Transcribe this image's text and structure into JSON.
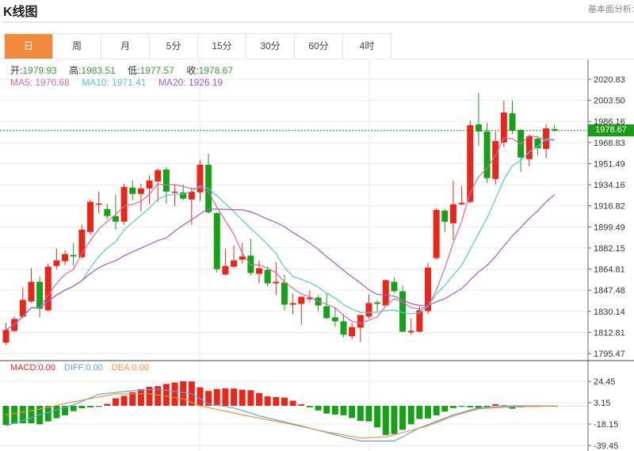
{
  "header": {
    "title": "K线图",
    "top_right_link": "基本面分析:"
  },
  "tabs": [
    {
      "label": "日",
      "active": true
    },
    {
      "label": "周"
    },
    {
      "label": "月"
    },
    {
      "label": "5分"
    },
    {
      "label": "15分"
    },
    {
      "label": "30分"
    },
    {
      "label": "60分"
    },
    {
      "label": "4时"
    }
  ],
  "ohlc_info": {
    "open_label": "开:",
    "open": "1979.93",
    "high_label": "高:",
    "high": "1983.51",
    "low_label": "低:",
    "low": "1977.57",
    "close_label": "收:",
    "close": "1978.67"
  },
  "ma_info": {
    "ma5": "MA5: 1970.68",
    "ma10": "MA10: 1971.41",
    "ma20": "MA20: 1926.19"
  },
  "macd_info": {
    "macd": "MACD:0.00",
    "diff": "DIFF:0.00",
    "dea": "DEA:0.00"
  },
  "current_price": "1978.67",
  "colors": {
    "up": "#e8261c",
    "down": "#19a019",
    "ma5": "#d96b98",
    "ma10": "#5cc3d8",
    "ma20": "#a35cc6",
    "tab_active": "#f28a3d",
    "diff": "#5aa6e0",
    "dea": "#f0923e"
  },
  "chart_data": {
    "type": "candlestick",
    "price_axis": {
      "ticks": [
        "2020.83",
        "2003.50",
        "1986.16",
        "1968.83",
        "1951.49",
        "1934.16",
        "1916.82",
        "1899.49",
        "1882.15",
        "1864.81",
        "1847.48",
        "1830.14",
        "1812.81",
        "1795.47"
      ],
      "range": [
        1795.47,
        2020.83
      ]
    },
    "macd_axis": {
      "ticks": [
        "24.45",
        "3.15",
        "-18.15",
        "-39.45"
      ],
      "range": [
        -39.45,
        24.45
      ]
    },
    "candles": [
      [
        1804.4,
        1820.6,
        1802.4,
        1814.8
      ],
      [
        1814.1,
        1825.8,
        1812.8,
        1823.9
      ],
      [
        1825.8,
        1849.9,
        1824.5,
        1839.5
      ],
      [
        1838.2,
        1865.5,
        1836.9,
        1854.4
      ],
      [
        1854.4,
        1859.0,
        1825.2,
        1832.3
      ],
      [
        1831.0,
        1869.4,
        1829.7,
        1866.8
      ],
      [
        1867.4,
        1881.7,
        1864.8,
        1872.0
      ],
      [
        1871.3,
        1880.4,
        1868.1,
        1877.2
      ],
      [
        1876.5,
        1886.2,
        1867.4,
        1875.2
      ],
      [
        1874.6,
        1901.2,
        1873.3,
        1897.3
      ],
      [
        1895.3,
        1922.0,
        1892.7,
        1920.1
      ],
      [
        1918.1,
        1928.5,
        1910.9,
        1918.7
      ],
      [
        1914.2,
        1918.7,
        1905.7,
        1908.4
      ],
      [
        1908.4,
        1925.9,
        1897.3,
        1903.8
      ],
      [
        1903.8,
        1935.0,
        1901.2,
        1932.4
      ],
      [
        1931.8,
        1937.6,
        1921.4,
        1926.6
      ],
      [
        1926.6,
        1935.0,
        1912.3,
        1931.1
      ],
      [
        1931.1,
        1942.2,
        1918.1,
        1937.6
      ],
      [
        1936.9,
        1947.4,
        1920.1,
        1946.1
      ],
      [
        1946.7,
        1948.7,
        1918.7,
        1928.5
      ],
      [
        1927.9,
        1934.4,
        1916.8,
        1928.5
      ],
      [
        1927.9,
        1934.4,
        1921.4,
        1922.7
      ],
      [
        1922.0,
        1931.8,
        1901.2,
        1928.5
      ],
      [
        1927.9,
        1954.5,
        1920.7,
        1950.6
      ],
      [
        1950.6,
        1959.7,
        1910.3,
        1911.6
      ],
      [
        1910.9,
        1911.6,
        1862.2,
        1864.8
      ],
      [
        1860.3,
        1881.7,
        1859.6,
        1867.4
      ],
      [
        1866.8,
        1884.3,
        1865.5,
        1872.0
      ],
      [
        1872.6,
        1886.2,
        1869.4,
        1875.2
      ],
      [
        1875.9,
        1890.1,
        1859.6,
        1861.6
      ],
      [
        1860.9,
        1872.0,
        1853.1,
        1865.5
      ],
      [
        1864.2,
        1866.8,
        1850.5,
        1853.1
      ],
      [
        1853.1,
        1870.7,
        1843.4,
        1854.4
      ],
      [
        1853.8,
        1860.3,
        1831.0,
        1835.6
      ],
      [
        1835.6,
        1844.7,
        1827.8,
        1836.9
      ],
      [
        1836.2,
        1842.1,
        1819.3,
        1842.1
      ],
      [
        1840.1,
        1847.3,
        1837.5,
        1841.4
      ],
      [
        1841.4,
        1843.4,
        1830.3,
        1834.9
      ],
      [
        1834.3,
        1845.3,
        1823.9,
        1824.5
      ],
      [
        1825.2,
        1833.0,
        1817.3,
        1821.9
      ],
      [
        1821.9,
        1827.8,
        1808.9,
        1810.9
      ],
      [
        1809.6,
        1820.6,
        1807.0,
        1817.3
      ],
      [
        1816.7,
        1827.1,
        1805.0,
        1827.1
      ],
      [
        1825.8,
        1844.0,
        1823.9,
        1836.9
      ],
      [
        1837.5,
        1839.5,
        1830.3,
        1836.2
      ],
      [
        1834.9,
        1856.4,
        1834.3,
        1855.7
      ],
      [
        1854.4,
        1858.3,
        1845.3,
        1846.6
      ],
      [
        1846.6,
        1851.2,
        1812.8,
        1813.4
      ],
      [
        1812.8,
        1824.5,
        1810.8,
        1814.1
      ],
      [
        1813.4,
        1834.3,
        1812.8,
        1831.0
      ],
      [
        1830.3,
        1870.0,
        1827.8,
        1866.1
      ],
      [
        1873.9,
        1914.8,
        1872.6,
        1913.5
      ],
      [
        1912.9,
        1914.2,
        1895.3,
        1903.8
      ],
      [
        1902.5,
        1937.6,
        1888.8,
        1918.1
      ],
      [
        1918.1,
        1933.0,
        1917.5,
        1919.4
      ],
      [
        1920.1,
        1987.0,
        1918.7,
        1983.1
      ],
      [
        1983.8,
        2009.7,
        1966.2,
        1977.9
      ],
      [
        1977.9,
        1985.1,
        1935.7,
        1939.6
      ],
      [
        1938.9,
        1977.9,
        1934.4,
        1970.1
      ],
      [
        1968.8,
        2003.3,
        1964.9,
        1993.5
      ],
      [
        1992.9,
        2003.3,
        1976.0,
        1978.5
      ],
      [
        1979.2,
        1979.9,
        1944.8,
        1956.5
      ],
      [
        1955.2,
        1975.3,
        1949.3,
        1974.0
      ],
      [
        1972.0,
        1973.4,
        1958.4,
        1964.2
      ],
      [
        1963.6,
        1983.8,
        1955.8,
        1980.5
      ],
      [
        1979.93,
        1983.51,
        1977.57,
        1978.67
      ]
    ],
    "macd_hist": [
      -19.1,
      -17.9,
      -17.4,
      -17.4,
      -18.4,
      -15.5,
      -12.3,
      -9.4,
      -5.3,
      -2.4,
      -1.5,
      -1.0,
      1.9,
      7.5,
      9.9,
      13.6,
      16.5,
      18.9,
      19.6,
      21.8,
      23.2,
      24.4,
      24.2,
      18.4,
      14.8,
      16.7,
      17.4,
      17.2,
      16.0,
      15.5,
      12.8,
      9.4,
      8.7,
      8.2,
      5.1,
      1.5,
      -1.5,
      -4.6,
      -7.7,
      -8.7,
      -9.4,
      -12.1,
      -15.0,
      -15.5,
      -21.5,
      -29.0,
      -28.1,
      -23.9,
      -18.4,
      -13.1,
      -12.6,
      -9.4,
      -5.8,
      -2.2,
      -1.0,
      -1.5,
      -3.4,
      -1.5,
      1.5,
      0.5,
      -2.9,
      -1.5,
      -1.0,
      -1.0,
      -0.5,
      -0.2
    ],
    "diff_keypoints": [
      [
        0,
        -20
      ],
      [
        4,
        -9
      ],
      [
        8,
        1
      ],
      [
        11,
        11.5
      ],
      [
        15,
        15
      ],
      [
        18,
        16.5
      ],
      [
        22,
        12
      ],
      [
        24,
        2
      ],
      [
        27,
        -2
      ],
      [
        30,
        -10
      ],
      [
        35,
        -20
      ],
      [
        40,
        -31
      ],
      [
        42,
        -35
      ],
      [
        46,
        -35
      ],
      [
        49,
        -22
      ],
      [
        53,
        -9
      ],
      [
        56,
        -2
      ],
      [
        60,
        0
      ],
      [
        65,
        0
      ]
    ],
    "dea_keypoints": [
      [
        0,
        -9
      ],
      [
        3,
        -5
      ],
      [
        8,
        4
      ],
      [
        13,
        11.9
      ],
      [
        17,
        12
      ],
      [
        21,
        7
      ],
      [
        23,
        0
      ],
      [
        28,
        -9
      ],
      [
        33,
        -17
      ],
      [
        38,
        -26
      ],
      [
        42,
        -32
      ],
      [
        45,
        -31
      ],
      [
        50,
        -20
      ],
      [
        53,
        -10
      ],
      [
        56,
        -3
      ],
      [
        60,
        -1
      ],
      [
        65,
        0
      ]
    ]
  }
}
